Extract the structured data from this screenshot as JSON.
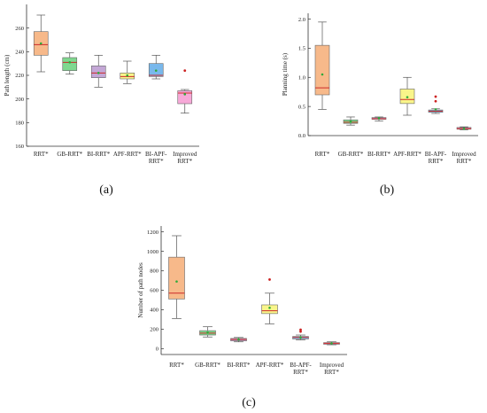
{
  "chart_data": [
    {
      "type": "box",
      "panel_label": "(a)",
      "ylabel": "Path length (cm)",
      "ylim": [
        160,
        280
      ],
      "yticks": [
        160,
        180,
        200,
        220,
        240,
        260
      ],
      "categories": [
        [
          "RRT*"
        ],
        [
          "GB-RRT*"
        ],
        [
          "BI-RRT*"
        ],
        [
          "APF-RRT*"
        ],
        [
          "BI-APF-",
          "RRT*"
        ],
        [
          "Improved",
          "RRT*"
        ]
      ],
      "colors": [
        "#f7b98a",
        "#7fd88f",
        "#c4a7d6",
        "#f9f58a",
        "#79b8ec",
        "#f7a9d8"
      ],
      "boxes": [
        {
          "whisker_low": 223,
          "q1": 237,
          "median": 246,
          "q3": 257,
          "whisker_high": 271,
          "mean": 247,
          "outliers": []
        },
        {
          "whisker_low": 221,
          "q1": 224,
          "median": 231,
          "q3": 235,
          "whisker_high": 239,
          "mean": 231,
          "outliers": []
        },
        {
          "whisker_low": 210,
          "q1": 218,
          "median": 222,
          "q3": 228,
          "whisker_high": 237,
          "mean": 222,
          "outliers": []
        },
        {
          "whisker_low": 213,
          "q1": 217,
          "median": 219,
          "q3": 222,
          "whisker_high": 232,
          "mean": 220,
          "outliers": []
        },
        {
          "whisker_low": 217,
          "q1": 219,
          "median": 220,
          "q3": 230,
          "whisker_high": 237,
          "mean": 224,
          "outliers": []
        },
        {
          "whisker_low": 188,
          "q1": 196,
          "median": 205,
          "q3": 207,
          "whisker_high": 208,
          "mean": 204,
          "outliers": [
            224
          ]
        }
      ]
    },
    {
      "type": "box",
      "panel_label": "(b)",
      "ylabel": "Planning time (s)",
      "ylim": [
        0.0,
        2.1
      ],
      "yticks": [
        0.0,
        0.5,
        1.0,
        1.5,
        2.0
      ],
      "ytick_labels": [
        "0.0",
        "0.5",
        "1.0",
        "1.5",
        "2.0"
      ],
      "categories": [
        [
          "RRT*"
        ],
        [
          "GB-RRT*"
        ],
        [
          "BI-RRT*"
        ],
        [
          "APF-RRT*"
        ],
        [
          "BI-APF-",
          "RRT*"
        ],
        [
          "Improved",
          "RRT*"
        ]
      ],
      "colors": [
        "#f7b98a",
        "#7fd88f",
        "#c4a7d6",
        "#f9f58a",
        "#79b8ec",
        "#f7a9d8"
      ],
      "boxes": [
        {
          "whisker_low": 0.45,
          "q1": 0.7,
          "median": 0.82,
          "q3": 1.55,
          "whisker_high": 1.95,
          "mean": 1.05,
          "outliers": []
        },
        {
          "whisker_low": 0.18,
          "q1": 0.21,
          "median": 0.23,
          "q3": 0.27,
          "whisker_high": 0.32,
          "mean": 0.24,
          "outliers": []
        },
        {
          "whisker_low": 0.25,
          "q1": 0.28,
          "median": 0.29,
          "q3": 0.31,
          "whisker_high": 0.32,
          "mean": 0.3,
          "outliers": []
        },
        {
          "whisker_low": 0.35,
          "q1": 0.55,
          "median": 0.62,
          "q3": 0.8,
          "whisker_high": 1.0,
          "mean": 0.66,
          "outliers": []
        },
        {
          "whisker_low": 0.38,
          "q1": 0.4,
          "median": 0.42,
          "q3": 0.44,
          "whisker_high": 0.46,
          "mean": 0.45,
          "outliers": [
            0.59,
            0.67
          ]
        },
        {
          "whisker_low": 0.1,
          "q1": 0.11,
          "median": 0.12,
          "q3": 0.14,
          "whisker_high": 0.15,
          "mean": 0.12,
          "outliers": []
        }
      ]
    },
    {
      "type": "box",
      "panel_label": "(c)",
      "ylabel": "Number of path nodes",
      "ylim": [
        -60,
        1260
      ],
      "yticks": [
        0,
        200,
        400,
        600,
        800,
        1000,
        1200
      ],
      "categories": [
        [
          "RRT*"
        ],
        [
          "GB-RRT*"
        ],
        [
          "BI-RRT*"
        ],
        [
          "APF-RRT*"
        ],
        [
          "BI-APF-",
          "RRT*"
        ],
        [
          "Improved",
          "RRT*"
        ]
      ],
      "colors": [
        "#f7b98a",
        "#7fd88f",
        "#c4a7d6",
        "#f9f58a",
        "#79b8ec",
        "#f7a9d8"
      ],
      "boxes": [
        {
          "whisker_low": 310,
          "q1": 510,
          "median": 570,
          "q3": 940,
          "whisker_high": 1160,
          "mean": 690,
          "outliers": []
        },
        {
          "whisker_low": 120,
          "q1": 140,
          "median": 160,
          "q3": 185,
          "whisker_high": 225,
          "mean": 165,
          "outliers": []
        },
        {
          "whisker_low": 70,
          "q1": 80,
          "median": 95,
          "q3": 105,
          "whisker_high": 115,
          "mean": 95,
          "outliers": []
        },
        {
          "whisker_low": 255,
          "q1": 360,
          "median": 390,
          "q3": 450,
          "whisker_high": 570,
          "mean": 420,
          "outliers": [
            710
          ]
        },
        {
          "whisker_low": 90,
          "q1": 100,
          "median": 115,
          "q3": 125,
          "whisker_high": 140,
          "mean": 115,
          "outliers": [
            175,
            195
          ]
        },
        {
          "whisker_low": 40,
          "q1": 45,
          "median": 55,
          "q3": 62,
          "whisker_high": 70,
          "mean": 55,
          "outliers": []
        }
      ]
    }
  ],
  "style": {
    "median_color": "#cc2a2a",
    "mean_color": "#2faa3a",
    "outlier_color": "#cc2020",
    "whisker_color": "#555555",
    "axis_color": "#333333"
  }
}
